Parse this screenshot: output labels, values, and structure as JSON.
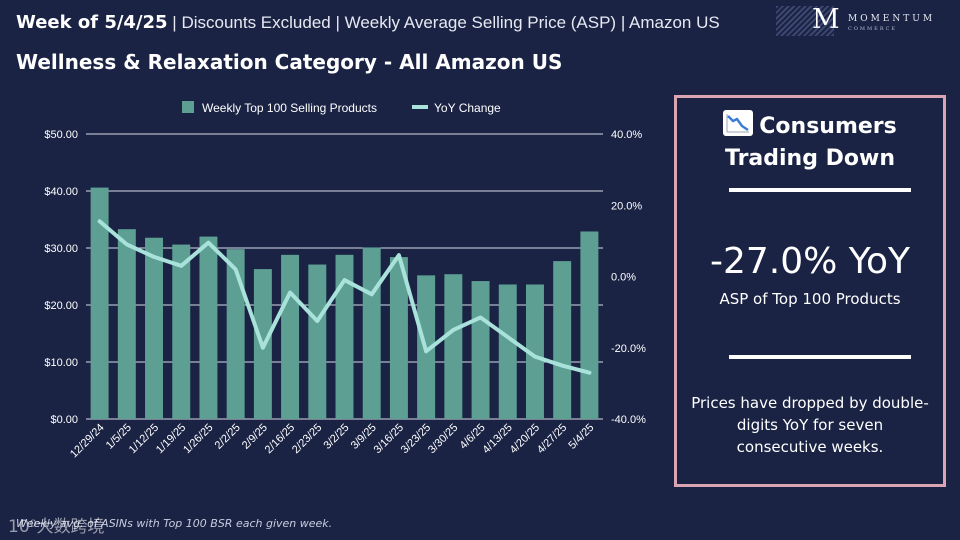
{
  "header": {
    "week": "Week of 5/4/25",
    "subtitle": " | Discounts Excluded | Weekly Average Selling Price (ASP) | Amazon US",
    "category_title": "Wellness & Relaxation Category - All Amazon US"
  },
  "logo": {
    "letter": "M",
    "wordmark": "MOMENTUM",
    "sub": "COMMERCE"
  },
  "chart_data": {
    "type": "bar+line",
    "categories": [
      "12/29/24",
      "1/5/25",
      "1/12/25",
      "1/19/25",
      "1/26/25",
      "2/2/25",
      "2/9/25",
      "2/16/25",
      "2/23/25",
      "3/2/25",
      "3/9/25",
      "3/16/25",
      "3/23/25",
      "3/30/25",
      "4/6/25",
      "4/13/25",
      "4/20/25",
      "4/27/25",
      "5/4/25"
    ],
    "series": [
      {
        "name": "Weekly Top 100 Selling Products",
        "type": "bar",
        "axis": "left",
        "values": [
          40.6,
          33.3,
          31.8,
          30.6,
          32.0,
          29.8,
          26.3,
          28.8,
          27.1,
          28.8,
          30.1,
          28.4,
          25.2,
          25.4,
          24.2,
          23.6,
          23.6,
          27.7,
          32.9
        ]
      },
      {
        "name": "YoY Change",
        "type": "line",
        "axis": "right",
        "values": [
          15.5,
          9.0,
          5.5,
          3.0,
          9.5,
          2.0,
          -20.0,
          -4.5,
          -12.5,
          -1.0,
          -5.0,
          6.0,
          -21.0,
          -15.0,
          -11.5,
          -17.0,
          -22.5,
          -25.0,
          -27.0
        ]
      }
    ],
    "y_left": {
      "range": [
        0,
        50
      ],
      "ticks": [
        "$0.00",
        "$10.00",
        "$20.00",
        "$30.00",
        "$40.00",
        "$50.00"
      ]
    },
    "y_right": {
      "range": [
        -40,
        40
      ],
      "ticks": [
        "-40.0%",
        "-20.0%",
        "0.0%",
        "20.0%",
        "40.0%"
      ]
    },
    "legend_position": "top-center",
    "colors": {
      "bar": "#5e9f94",
      "line": "#a9e2da",
      "grid": "#d8dbe6",
      "tick": "#ffffff"
    }
  },
  "panel": {
    "heading_line1": "Consumers",
    "heading_line2": "Trading Down",
    "icon": "chart-decreasing-icon",
    "big_stat": "-27.0% YoY",
    "big_label": "ASP of Top 100 Products",
    "note": "Prices have dropped by double-digits YoY for seven consecutive weeks.",
    "border_color": "#d9a5b3"
  },
  "footnote": "Weekly avg. of ASINs with Top 100 BSR each given week.",
  "watermark": "10⁰大数跨境"
}
